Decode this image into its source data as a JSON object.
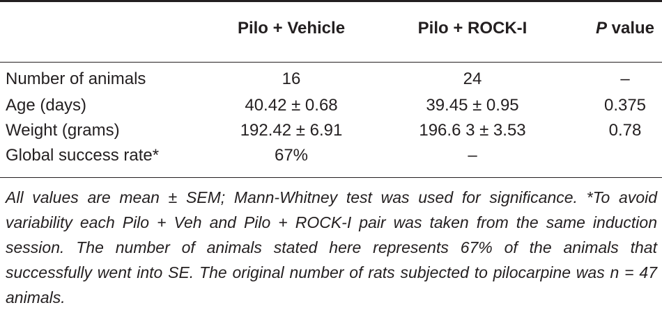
{
  "header": {
    "col1": "Pilo + Vehicle",
    "col2": "Pilo + ROCK-I",
    "col3_italic": "P",
    "col3_rest": " value"
  },
  "rows": [
    {
      "label": "Number of animals",
      "vehicle": "16",
      "rock": "24",
      "p": "–"
    },
    {
      "label": "Age (days)",
      "vehicle": "40.42 ± 0.68",
      "rock": "39.45 ± 0.95",
      "p": "0.375"
    },
    {
      "label": "Weight (grams)",
      "vehicle": "192.42 ± 6.91",
      "rock": "196.6 3 ± 3.53",
      "p": "0.78"
    },
    {
      "label": "Global success rate*",
      "vehicle": "67%",
      "rock": "–",
      "p": ""
    }
  ],
  "footnote": {
    "line1": "All values are mean ± SEM; Mann-Whitney test was used for significance.",
    "line2": "*To avoid variability each Pilo + Veh and Pilo + ROCK-I pair was taken from the same induction session. The number of animals stated here represents 67% of the animals that successfully went into SE. The original number of rats subjected to pilocarpine was n = 47 animals."
  }
}
